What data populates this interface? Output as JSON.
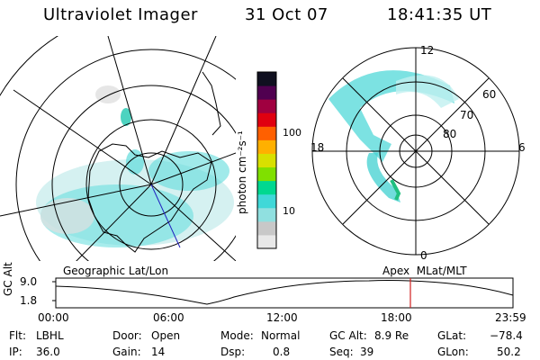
{
  "header": {
    "instrument": "Ultraviolet Imager",
    "date": "31 Oct 07",
    "time": "18:41:35 UT"
  },
  "colorbar": {
    "unit_label": "photon cm⁻²s⁻¹",
    "tick_labels": [
      "100",
      "10"
    ],
    "colors": [
      "#e8e8e8",
      "#c8c8c8",
      "#90e0e0",
      "#40d8d8",
      "#00d890",
      "#80e000",
      "#d8e000",
      "#ffb000",
      "#ff6000",
      "#e00010",
      "#a00040",
      "#500050",
      "#101020"
    ]
  },
  "left_map": {
    "label": "Geographic Lat/Lon"
  },
  "right_map": {
    "label": "Apex  MLat/MLT",
    "mlt_labels": {
      "top": "12",
      "bottom": "0",
      "left": "18",
      "right": "6"
    },
    "lat_labels": [
      "60",
      "70",
      "80"
    ]
  },
  "altitude_plot": {
    "ylabel": "GC Alt",
    "y_ticks": [
      "9.0",
      "1.8"
    ],
    "x_ticks": [
      "00:00",
      "06:00",
      "12:00",
      "18:00",
      "23:59"
    ]
  },
  "status": {
    "flt_label": "Flt:",
    "flt_value": "LBHL",
    "ip_label": "IP:",
    "ip_value": "36.0",
    "door_label": "Door:",
    "door_value": "Open",
    "gain_label": "Gain:",
    "gain_value": "14",
    "mode_label": "Mode:",
    "mode_value": "Normal",
    "dsp_label": "Dsp:",
    "dsp_value": "0.8",
    "gcalt_label": "GC Alt:",
    "gcalt_value": "8.9 Re",
    "seq_label": "Seq:",
    "seq_value": "39",
    "glat_label": "GLat:",
    "glat_value": "−78.4",
    "glon_label": "GLon:",
    "glon_value": "50.2"
  }
}
